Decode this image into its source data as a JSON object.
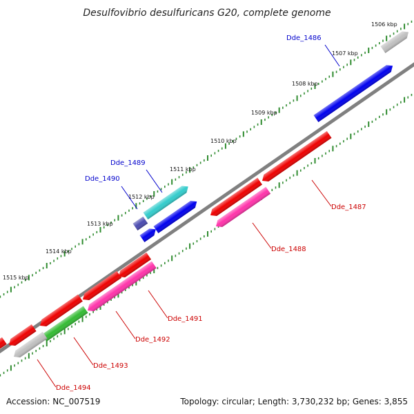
{
  "title": "Desulfovibrio desulfuricans G20, complete genome",
  "footer": {
    "accession": "Accession: NC_007519",
    "summary": "Topology: circular; Length: 3,730,232 bp; Genes: 3,855"
  },
  "colors": {
    "background": "#ffffff",
    "backbone": "#808080",
    "ticks": "#2e8b2e",
    "forward_label": "#0000cc",
    "reverse_label": "#cc0000"
  },
  "ticks": [
    {
      "label": "1506 kbp"
    },
    {
      "label": "1507 kbp"
    },
    {
      "label": "1508 kbp"
    },
    {
      "label": "1509 kbp"
    },
    {
      "label": "1510 kbp"
    },
    {
      "label": "1511 kbp"
    },
    {
      "label": "1512 kbp"
    },
    {
      "label": "1513 kbp"
    },
    {
      "label": "1514 kbp"
    },
    {
      "label": "1515 kbp"
    }
  ],
  "genes": [
    {
      "id": "g_grey_top",
      "strand": "+",
      "color": "#c0c0c0",
      "label": ""
    },
    {
      "id": "Dde_1486",
      "strand": "+",
      "color": "#0000ee",
      "label": "Dde_1486"
    },
    {
      "id": "Dde_1489",
      "strand": "+",
      "color": "#33cccc",
      "label": "Dde_1489"
    },
    {
      "id": "Dde_1490",
      "strand": "+",
      "color": "#4b4bb0",
      "label": "Dde_1490"
    },
    {
      "id": "g_blue_mid",
      "strand": "+",
      "color": "#0000ee",
      "label": ""
    },
    {
      "id": "g_blue_small",
      "strand": "+",
      "color": "#0000ee",
      "label": ""
    },
    {
      "id": "Dde_1487",
      "strand": "-",
      "color": "#ee0000",
      "label": "Dde_1487"
    },
    {
      "id": "g_red_1487b",
      "strand": "-",
      "color": "#ee0000",
      "label": ""
    },
    {
      "id": "Dde_1488",
      "strand": "-",
      "color": "#ff33aa",
      "label": "Dde_1488"
    },
    {
      "id": "Dde_1491",
      "strand": "-",
      "color": "#ee0000",
      "label": "Dde_1491"
    },
    {
      "id": "g_red_1491b",
      "strand": "-",
      "color": "#ee0000",
      "label": ""
    },
    {
      "id": "Dde_1492",
      "strand": "-",
      "color": "#ff33aa",
      "label": "Dde_1492"
    },
    {
      "id": "g_red_low1",
      "strand": "-",
      "color": "#ee0000",
      "label": ""
    },
    {
      "id": "Dde_1493",
      "strand": "-",
      "color": "#33bb33",
      "label": "Dde_1493"
    },
    {
      "id": "g_red_low2",
      "strand": "-",
      "color": "#ee0000",
      "label": ""
    },
    {
      "id": "Dde_1494",
      "strand": "-",
      "color": "#c0c0c0",
      "label": "Dde_1494"
    },
    {
      "id": "g_red_edge",
      "strand": "-",
      "color": "#ee0000",
      "label": ""
    }
  ]
}
